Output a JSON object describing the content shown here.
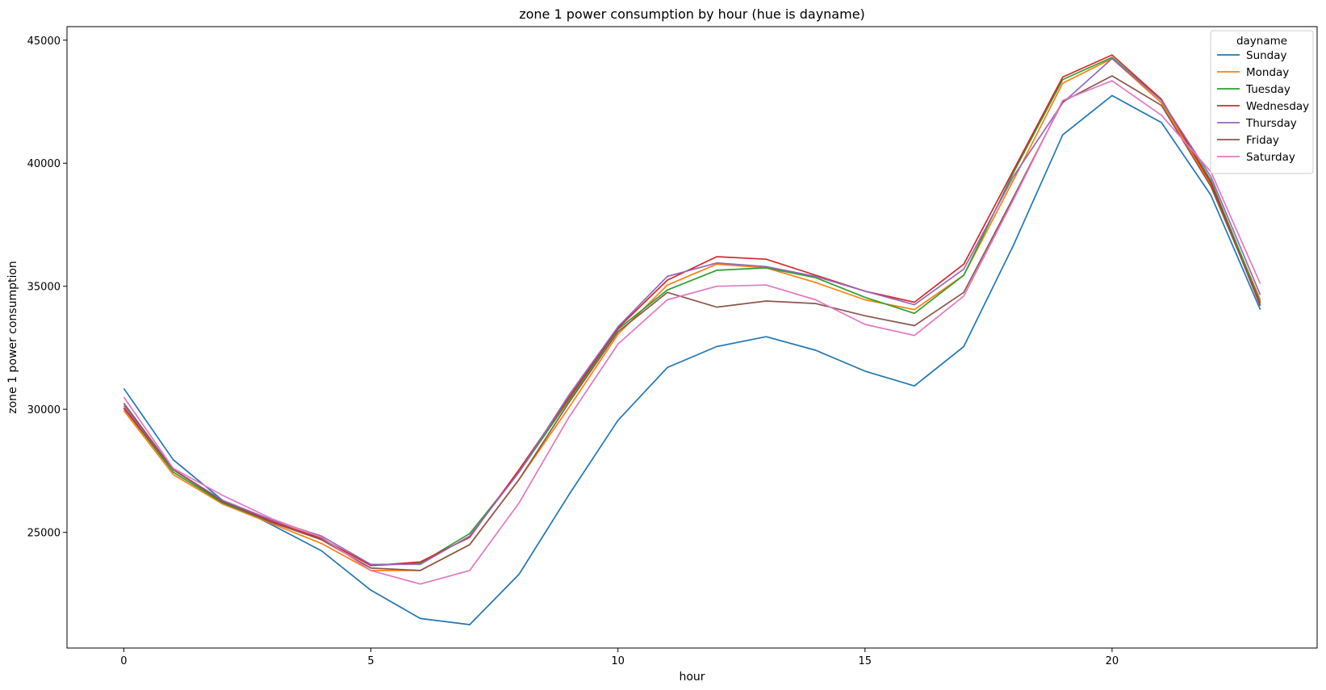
{
  "chart_data": {
    "type": "line",
    "title": "zone 1 power consumption by hour (hue is dayname)",
    "xlabel": "hour",
    "ylabel": "zone 1 power consumption",
    "xlim": [
      -1.15,
      24.15
    ],
    "ylim": [
      20300,
      45550
    ],
    "xticks": [
      0,
      5,
      10,
      15,
      20
    ],
    "yticks": [
      25000,
      30000,
      35000,
      40000,
      45000
    ],
    "grid": false,
    "legend": {
      "title": "dayname",
      "placement": "top-right"
    },
    "x": [
      0,
      1,
      2,
      3,
      4,
      5,
      6,
      7,
      8,
      9,
      10,
      11,
      12,
      13,
      14,
      15,
      16,
      17,
      18,
      19,
      20,
      21,
      22,
      23
    ],
    "series": [
      {
        "name": "Sunday",
        "color": "#1f77b4",
        "values": [
          30850,
          27950,
          26300,
          25300,
          24250,
          22650,
          21500,
          21250,
          23300,
          26500,
          29550,
          31700,
          32550,
          32950,
          32400,
          31550,
          30950,
          32550,
          36650,
          41150,
          42750,
          41650,
          38700,
          34050
        ]
      },
      {
        "name": "Monday",
        "color": "#ff7f0e",
        "values": [
          29950,
          27350,
          26150,
          25350,
          24550,
          23450,
          23450,
          24500,
          27150,
          30050,
          33050,
          35050,
          35900,
          35750,
          35150,
          34450,
          34050,
          35450,
          39300,
          43250,
          44250,
          42450,
          39150,
          34450
        ]
      },
      {
        "name": "Tuesday",
        "color": "#2ca02c",
        "values": [
          30050,
          27450,
          26200,
          25400,
          24750,
          23650,
          23750,
          24950,
          27450,
          30350,
          33250,
          34850,
          35650,
          35750,
          35350,
          34550,
          33900,
          35450,
          39600,
          43400,
          44300,
          42550,
          39300,
          34350
        ]
      },
      {
        "name": "Wednesday",
        "color": "#d62728",
        "values": [
          30050,
          27550,
          26250,
          25450,
          24750,
          23650,
          23800,
          24800,
          27550,
          30450,
          33300,
          35250,
          36200,
          36100,
          35450,
          34800,
          34350,
          35900,
          39700,
          43500,
          44400,
          42600,
          39200,
          34200
        ]
      },
      {
        "name": "Thursday",
        "color": "#9467bd",
        "values": [
          30150,
          27550,
          26300,
          25500,
          24850,
          23700,
          23700,
          24850,
          27450,
          30550,
          33350,
          35400,
          35950,
          35800,
          35400,
          34800,
          34250,
          35700,
          39450,
          42450,
          44250,
          42550,
          39450,
          34650
        ]
      },
      {
        "name": "Friday",
        "color": "#8c564b",
        "values": [
          30250,
          27550,
          26250,
          25400,
          24700,
          23550,
          23450,
          24500,
          27150,
          30250,
          33150,
          34750,
          34150,
          34400,
          34300,
          33800,
          33400,
          34750,
          38600,
          42500,
          43550,
          42350,
          39050,
          34300
        ]
      },
      {
        "name": "Saturday",
        "color": "#e377c2",
        "values": [
          30500,
          27600,
          26500,
          25550,
          24800,
          23450,
          22900,
          23450,
          26200,
          29650,
          32650,
          34450,
          35000,
          35050,
          34450,
          33450,
          33000,
          34600,
          38500,
          42550,
          43350,
          41950,
          39650,
          35100
        ]
      }
    ]
  }
}
